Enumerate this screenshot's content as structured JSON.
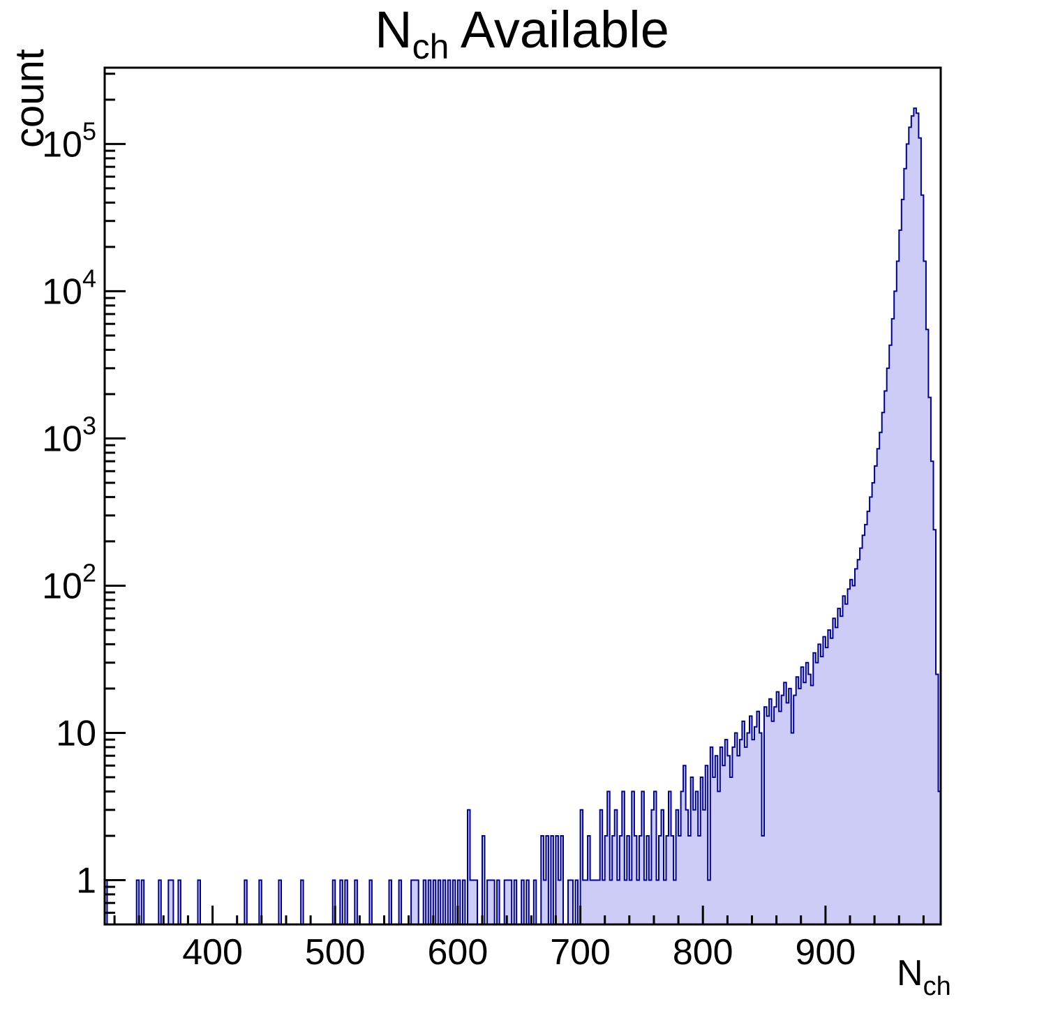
{
  "title": {
    "main": "N",
    "sub": "ch",
    "rest": " Available"
  },
  "y_axis": {
    "label": "count",
    "ticks": [
      {
        "value": 1,
        "text": "1",
        "exp": ""
      },
      {
        "value": 10,
        "text": "10",
        "exp": ""
      },
      {
        "value": 100,
        "text": "10",
        "exp": "2"
      },
      {
        "value": 1000,
        "text": "10",
        "exp": "3"
      },
      {
        "value": 10000,
        "text": "10",
        "exp": "4"
      },
      {
        "value": 100000,
        "text": "10",
        "exp": "5"
      }
    ],
    "scale": "log",
    "range": [
      0.5,
      330000
    ]
  },
  "x_axis": {
    "label": {
      "main": "N",
      "sub": "ch"
    },
    "ticks": [
      400,
      500,
      600,
      700,
      800,
      900
    ],
    "minor_step": 20,
    "range": [
      312,
      994
    ]
  },
  "colors": {
    "background": "#ffffff",
    "axis": "#000000",
    "hist_fill": "#ccccf7",
    "hist_line": "#000090"
  },
  "chart_data": {
    "type": "bar",
    "subtype": "histogram",
    "title": "N_ch Available",
    "xlabel": "N_ch",
    "ylabel": "count",
    "y_scale": "log",
    "ylim": [
      0.5,
      330000
    ],
    "xlim": [
      312,
      994
    ],
    "bin_width": 2,
    "grid": false,
    "legend": "none",
    "bins_note": "pairs of [bin_left_edge, count]; bins not listed have count 0",
    "bins": [
      [
        312,
        1
      ],
      [
        338,
        1
      ],
      [
        342,
        1
      ],
      [
        356,
        1
      ],
      [
        364,
        1
      ],
      [
        366,
        1
      ],
      [
        372,
        1
      ],
      [
        388,
        1
      ],
      [
        426,
        1
      ],
      [
        438,
        1
      ],
      [
        454,
        1
      ],
      [
        472,
        1
      ],
      [
        498,
        1
      ],
      [
        504,
        1
      ],
      [
        508,
        1
      ],
      [
        516,
        1
      ],
      [
        528,
        1
      ],
      [
        544,
        1
      ],
      [
        552,
        1
      ],
      [
        562,
        1
      ],
      [
        564,
        1
      ],
      [
        566,
        1
      ],
      [
        572,
        1
      ],
      [
        576,
        1
      ],
      [
        580,
        1
      ],
      [
        584,
        1
      ],
      [
        588,
        1
      ],
      [
        592,
        1
      ],
      [
        596,
        1
      ],
      [
        600,
        1
      ],
      [
        604,
        1
      ],
      [
        608,
        3
      ],
      [
        610,
        1
      ],
      [
        612,
        1
      ],
      [
        614,
        1
      ],
      [
        620,
        2
      ],
      [
        624,
        1
      ],
      [
        626,
        1
      ],
      [
        628,
        1
      ],
      [
        632,
        1
      ],
      [
        638,
        1
      ],
      [
        640,
        1
      ],
      [
        642,
        1
      ],
      [
        646,
        1
      ],
      [
        652,
        1
      ],
      [
        656,
        1
      ],
      [
        662,
        1
      ],
      [
        668,
        2
      ],
      [
        670,
        1
      ],
      [
        672,
        2
      ],
      [
        676,
        2
      ],
      [
        680,
        2
      ],
      [
        682,
        1
      ],
      [
        684,
        2
      ],
      [
        690,
        1
      ],
      [
        692,
        1
      ],
      [
        696,
        1
      ],
      [
        700,
        3
      ],
      [
        702,
        1
      ],
      [
        704,
        1
      ],
      [
        706,
        2
      ],
      [
        708,
        1
      ],
      [
        710,
        1
      ],
      [
        712,
        1
      ],
      [
        714,
        1
      ],
      [
        716,
        3
      ],
      [
        718,
        1
      ],
      [
        720,
        2
      ],
      [
        722,
        4
      ],
      [
        724,
        1
      ],
      [
        726,
        2
      ],
      [
        728,
        3
      ],
      [
        730,
        1
      ],
      [
        732,
        2
      ],
      [
        734,
        4
      ],
      [
        736,
        1
      ],
      [
        738,
        2
      ],
      [
        740,
        1
      ],
      [
        742,
        4
      ],
      [
        744,
        2
      ],
      [
        746,
        1
      ],
      [
        748,
        2
      ],
      [
        750,
        4
      ],
      [
        752,
        1
      ],
      [
        754,
        2
      ],
      [
        756,
        1
      ],
      [
        758,
        3
      ],
      [
        760,
        4
      ],
      [
        762,
        1
      ],
      [
        764,
        2
      ],
      [
        766,
        3
      ],
      [
        768,
        1
      ],
      [
        770,
        2
      ],
      [
        772,
        4
      ],
      [
        774,
        2
      ],
      [
        776,
        1
      ],
      [
        778,
        3
      ],
      [
        780,
        2
      ],
      [
        782,
        4
      ],
      [
        784,
        6
      ],
      [
        786,
        3
      ],
      [
        788,
        2
      ],
      [
        790,
        5
      ],
      [
        792,
        3
      ],
      [
        794,
        4
      ],
      [
        796,
        2
      ],
      [
        798,
        5
      ],
      [
        800,
        3
      ],
      [
        802,
        6
      ],
      [
        804,
        1
      ],
      [
        806,
        8
      ],
      [
        808,
        5
      ],
      [
        810,
        7
      ],
      [
        812,
        4
      ],
      [
        814,
        8
      ],
      [
        816,
        6
      ],
      [
        818,
        9
      ],
      [
        820,
        7
      ],
      [
        822,
        5
      ],
      [
        824,
        8
      ],
      [
        826,
        10
      ],
      [
        828,
        7
      ],
      [
        830,
        9
      ],
      [
        832,
        12
      ],
      [
        834,
        8
      ],
      [
        836,
        10
      ],
      [
        838,
        13
      ],
      [
        840,
        9
      ],
      [
        842,
        11
      ],
      [
        844,
        14
      ],
      [
        846,
        10
      ],
      [
        848,
        2
      ],
      [
        850,
        15
      ],
      [
        852,
        13
      ],
      [
        854,
        17
      ],
      [
        856,
        12
      ],
      [
        858,
        15
      ],
      [
        860,
        19
      ],
      [
        862,
        14
      ],
      [
        864,
        18
      ],
      [
        866,
        22
      ],
      [
        868,
        16
      ],
      [
        870,
        20
      ],
      [
        872,
        10
      ],
      [
        874,
        18
      ],
      [
        876,
        24
      ],
      [
        878,
        20
      ],
      [
        880,
        28
      ],
      [
        882,
        22
      ],
      [
        884,
        30
      ],
      [
        886,
        25
      ],
      [
        888,
        21
      ],
      [
        890,
        35
      ],
      [
        892,
        30
      ],
      [
        894,
        40
      ],
      [
        896,
        33
      ],
      [
        898,
        45
      ],
      [
        900,
        38
      ],
      [
        902,
        50
      ],
      [
        904,
        44
      ],
      [
        906,
        60
      ],
      [
        908,
        52
      ],
      [
        910,
        70
      ],
      [
        912,
        62
      ],
      [
        914,
        85
      ],
      [
        916,
        75
      ],
      [
        918,
        95
      ],
      [
        920,
        110
      ],
      [
        922,
        100
      ],
      [
        924,
        130
      ],
      [
        926,
        150
      ],
      [
        928,
        180
      ],
      [
        930,
        220
      ],
      [
        932,
        260
      ],
      [
        934,
        320
      ],
      [
        936,
        400
      ],
      [
        938,
        500
      ],
      [
        940,
        650
      ],
      [
        942,
        850
      ],
      [
        944,
        1100
      ],
      [
        946,
        1500
      ],
      [
        948,
        2100
      ],
      [
        950,
        3000
      ],
      [
        952,
        4300
      ],
      [
        954,
        6500
      ],
      [
        956,
        10000
      ],
      [
        958,
        16000
      ],
      [
        960,
        26000
      ],
      [
        962,
        42000
      ],
      [
        964,
        68000
      ],
      [
        966,
        100000
      ],
      [
        968,
        130000
      ],
      [
        970,
        155000
      ],
      [
        972,
        175000
      ],
      [
        974,
        162000
      ],
      [
        976,
        110000
      ],
      [
        978,
        45000
      ],
      [
        980,
        16000
      ],
      [
        982,
        5500
      ],
      [
        984,
        1900
      ],
      [
        986,
        700
      ],
      [
        988,
        240
      ],
      [
        990,
        25
      ],
      [
        992,
        4
      ]
    ]
  }
}
